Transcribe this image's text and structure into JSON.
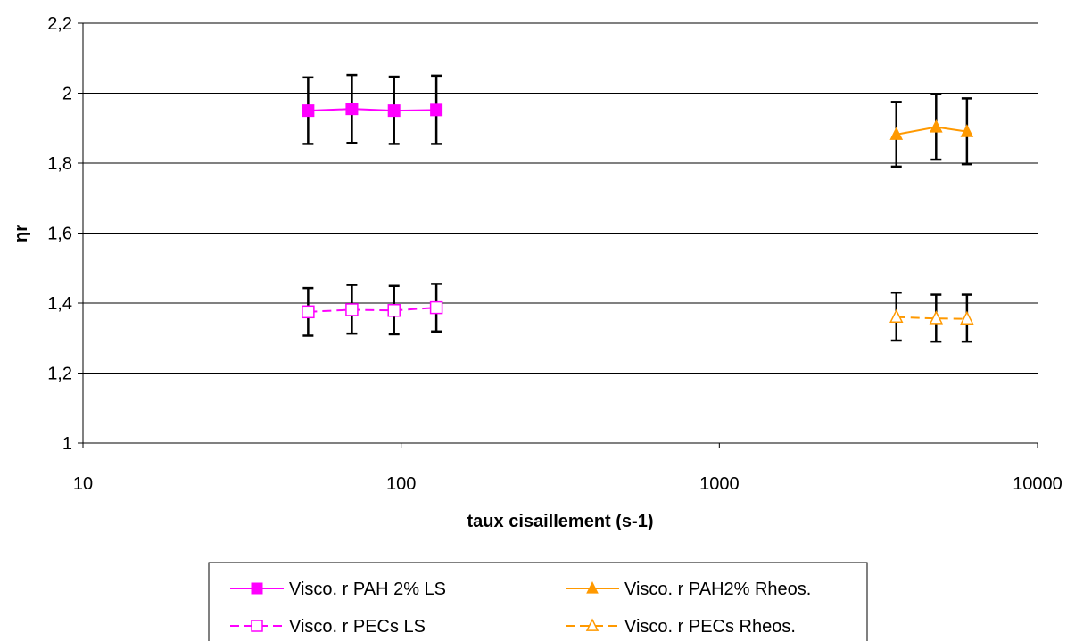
{
  "chart_data": {
    "type": "line",
    "x_scale": "log",
    "xlabel": "taux cisaillement (s-1)",
    "ylabel": "ηr",
    "xlim": [
      10,
      10000
    ],
    "ylim": [
      1,
      2.2
    ],
    "x_ticks": [
      10,
      100,
      1000,
      10000
    ],
    "x_tick_labels": [
      "10",
      "100",
      "1000",
      "10000"
    ],
    "y_ticks": [
      1,
      1.2,
      1.4,
      1.6,
      1.8,
      2,
      2.2
    ],
    "y_tick_labels": [
      "1",
      "1,2",
      "1,4",
      "1,6",
      "1,8",
      "2",
      "2,2"
    ],
    "grid": "horizontal",
    "legend_position": "bottom",
    "series": [
      {
        "name": "Visco. r PAH 2% LS",
        "color": "#FF00FF",
        "marker": "square-filled",
        "line_style": "solid",
        "x": [
          51,
          70,
          95,
          129
        ],
        "y": [
          1.95,
          1.955,
          1.95,
          1.952
        ],
        "y_err_low": [
          1.855,
          1.858,
          1.855,
          1.855
        ],
        "y_err_high": [
          2.045,
          2.052,
          2.047,
          2.05
        ]
      },
      {
        "name": "Visco. r PAH2% Rheos.",
        "color": "#FF9900",
        "marker": "triangle-filled",
        "line_style": "solid",
        "x": [
          3600,
          4800,
          6000
        ],
        "y": [
          1.882,
          1.903,
          1.89
        ],
        "y_err_low": [
          1.79,
          1.81,
          1.797
        ],
        "y_err_high": [
          1.975,
          1.997,
          1.985
        ]
      },
      {
        "name": "Visco. r PECs LS",
        "color": "#FF00FF",
        "marker": "square-open",
        "line_style": "dashed",
        "x": [
          51,
          70,
          95,
          129
        ],
        "y": [
          1.375,
          1.381,
          1.379,
          1.387
        ],
        "y_err_low": [
          1.307,
          1.313,
          1.311,
          1.319
        ],
        "y_err_high": [
          1.443,
          1.452,
          1.449,
          1.455
        ]
      },
      {
        "name": "Visco. r PECs Rheos.",
        "color": "#FF9900",
        "marker": "triangle-open",
        "line_style": "dashed",
        "x": [
          3600,
          4800,
          6000
        ],
        "y": [
          1.36,
          1.356,
          1.355
        ],
        "y_err_low": [
          1.293,
          1.29,
          1.29
        ],
        "y_err_high": [
          1.43,
          1.424,
          1.424
        ]
      }
    ]
  }
}
